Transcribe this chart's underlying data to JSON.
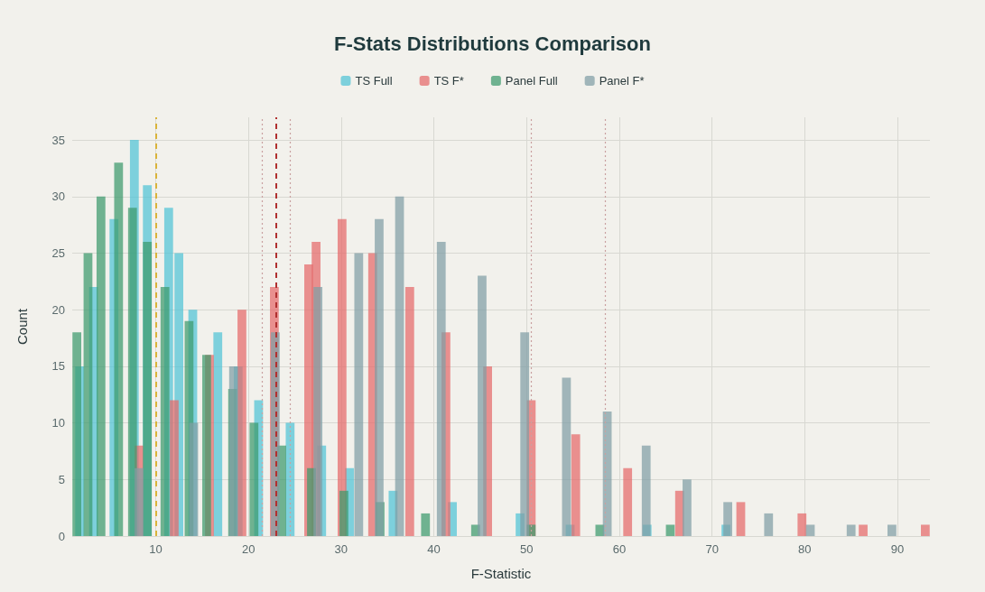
{
  "chart_data": {
    "type": "bar",
    "title": "F-Stats Distributions Comparison",
    "xlabel": "F-Statistic",
    "ylabel": "Count",
    "xlim": [
      1,
      93.5
    ],
    "xticks": [
      10,
      20,
      30,
      40,
      50,
      60,
      70,
      80,
      90
    ],
    "ylim": [
      0,
      37
    ],
    "yticks": [
      0,
      5,
      10,
      15,
      20,
      25,
      30,
      35
    ],
    "grid": true,
    "legend": "top",
    "series": [
      {
        "name": "TS Full",
        "color": "#4fc3d6",
        "x": [
          1.8,
          3.3,
          5.5,
          7.7,
          9.1,
          11.4,
          12.5,
          14.0,
          16.7,
          18.9,
          21.1,
          24.5,
          27.9,
          30.9,
          35.6,
          42.0,
          49.3,
          54.7,
          63.0,
          71.5
        ],
        "values": [
          15,
          22,
          28,
          35,
          31,
          29,
          25,
          20,
          18,
          15,
          12,
          10,
          8,
          6,
          4,
          3,
          2,
          1,
          1,
          1
        ]
      },
      {
        "name": "TS F*",
        "color": "#e46a6a",
        "x": [
          8.2,
          12.0,
          15.8,
          19.3,
          22.8,
          26.5,
          27.3,
          30.1,
          33.4,
          37.4,
          41.3,
          45.8,
          50.5,
          55.3,
          60.9,
          66.5,
          73.1,
          79.7,
          86.3,
          93.0
        ],
        "values": [
          8,
          12,
          16,
          20,
          22,
          24,
          26,
          28,
          25,
          22,
          18,
          15,
          12,
          9,
          6,
          4,
          3,
          2,
          1,
          1
        ]
      },
      {
        "name": "Panel Full",
        "color": "#3c9a6c",
        "x": [
          1.5,
          2.7,
          4.1,
          6.0,
          7.5,
          9.1,
          11.0,
          13.6,
          15.5,
          18.3,
          20.6,
          23.6,
          26.8,
          30.3,
          34.2,
          39.1,
          44.5,
          50.5,
          57.9,
          65.5
        ],
        "values": [
          18,
          25,
          30,
          33,
          29,
          26,
          22,
          19,
          16,
          13,
          10,
          8,
          6,
          4,
          3,
          2,
          1,
          1,
          1,
          1
        ]
      },
      {
        "name": "Panel F*",
        "color": "#7f9ea5",
        "x": [
          8.2,
          14.1,
          18.4,
          22.9,
          27.5,
          31.9,
          34.1,
          36.3,
          40.8,
          45.2,
          49.8,
          54.3,
          58.7,
          62.9,
          67.3,
          71.7,
          76.1,
          80.6,
          85.0,
          89.4
        ],
        "values": [
          6,
          10,
          15,
          18,
          22,
          25,
          28,
          30,
          26,
          23,
          18,
          14,
          11,
          8,
          5,
          3,
          2,
          1,
          1,
          1
        ]
      }
    ],
    "ref_lines": [
      {
        "axis": "x",
        "value": 10,
        "color": "#d9b33a",
        "line_style": "dashed"
      },
      {
        "axis": "x",
        "value": 23,
        "color": "#b03030",
        "line_style": "dashed"
      },
      {
        "axis": "x",
        "value": 21.5,
        "color": "#c9a0a0",
        "line_style": "dotted"
      },
      {
        "axis": "x",
        "value": 24.5,
        "color": "#c9a0a0",
        "line_style": "dotted"
      },
      {
        "axis": "x",
        "value": 50.5,
        "color": "#c9a0a0",
        "line_style": "dotted"
      },
      {
        "axis": "x",
        "value": 58.5,
        "color": "#c9a0a0",
        "line_style": "dotted"
      }
    ]
  }
}
